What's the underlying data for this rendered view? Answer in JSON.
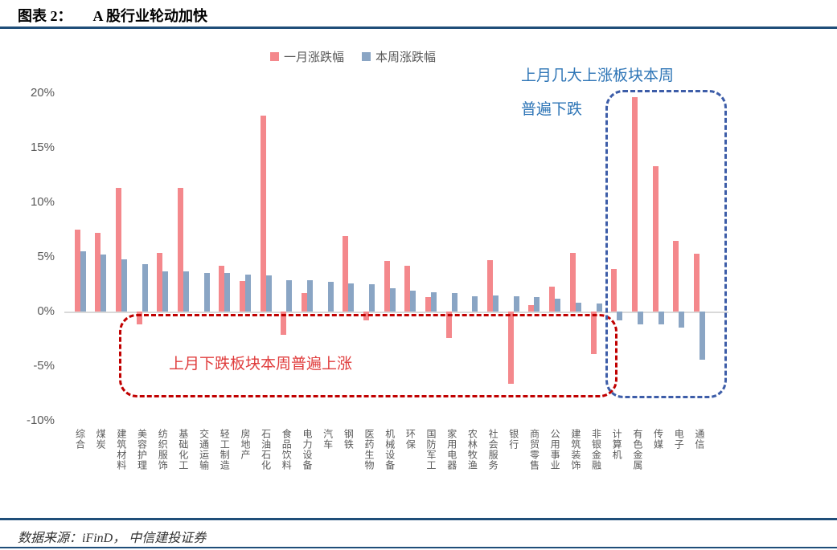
{
  "header": {
    "label": "图表 2：",
    "title": "A 股行业轮动加快"
  },
  "annotations": {
    "blue_note_line1": "上月几大上涨板块本周",
    "blue_note_line2": "普遍下跌",
    "red_note": "上月下跌板块本周普遍上涨"
  },
  "footer": {
    "source": "数据来源：iFinD， 中信建投证券"
  },
  "colors": {
    "month_bar": "#f4888c",
    "week_bar": "#8aa5c4",
    "red_box": "#c00000",
    "red_note_text": "#e03c3c",
    "blue_box": "#3d5da8",
    "blue_note_text": "#2e75b6",
    "header_rule": "#1f4e79",
    "axis_text": "#595959"
  },
  "chart_data": {
    "type": "bar",
    "title": "",
    "xlabel": "",
    "ylabel": "",
    "ylim": [
      -10,
      20
    ],
    "grid": false,
    "legend_position": "top",
    "y_ticks": [
      {
        "label": "20%",
        "value": 20
      },
      {
        "label": "15%",
        "value": 15
      },
      {
        "label": "10%",
        "value": 10
      },
      {
        "label": "5%",
        "value": 5
      },
      {
        "label": "0%",
        "value": 0
      },
      {
        "label": "-5%",
        "value": -5
      },
      {
        "label": "-10%",
        "value": -10
      }
    ],
    "categories": [
      "综合",
      "煤炭",
      "建筑材料",
      "美容护理",
      "纺织服饰",
      "基础化工",
      "交通运输",
      "轻工制造",
      "房地产",
      "石油石化",
      "食品饮料",
      "电力设备",
      "汽车",
      "钢铁",
      "医药生物",
      "机械设备",
      "环保",
      "国防军工",
      "家用电器",
      "农林牧渔",
      "社会服务",
      "银行",
      "商贸零售",
      "公用事业",
      "建筑装饰",
      "非银金融",
      "计算机",
      "有色金属",
      "传媒",
      "电子",
      "通信"
    ],
    "series": [
      {
        "name": "一月涨跌幅",
        "color": "#f4888c",
        "values": [
          7.5,
          7.2,
          11.3,
          -1.2,
          5.4,
          11.3,
          0,
          4.2,
          2.8,
          17.9,
          -2.1,
          1.7,
          0,
          6.9,
          -0.8,
          4.6,
          4.2,
          1.3,
          -2.4,
          0,
          4.7,
          -6.6,
          0.6,
          2.3,
          5.4,
          -3.9,
          3.9,
          19.6,
          13.3,
          6.5,
          5.3
        ]
      },
      {
        "name": "本周涨跌幅",
        "color": "#8aa5c4",
        "values": [
          5.5,
          5.2,
          4.8,
          4.3,
          3.7,
          3.7,
          3.5,
          3.5,
          3.4,
          3.3,
          2.9,
          2.9,
          2.7,
          2.6,
          2.5,
          2.1,
          1.9,
          1.8,
          1.7,
          1.4,
          1.5,
          1.4,
          1.3,
          1.2,
          0.8,
          0.7,
          -0.8,
          -1.2,
          -1.2,
          -1.5,
          -4.4
        ]
      }
    ]
  }
}
